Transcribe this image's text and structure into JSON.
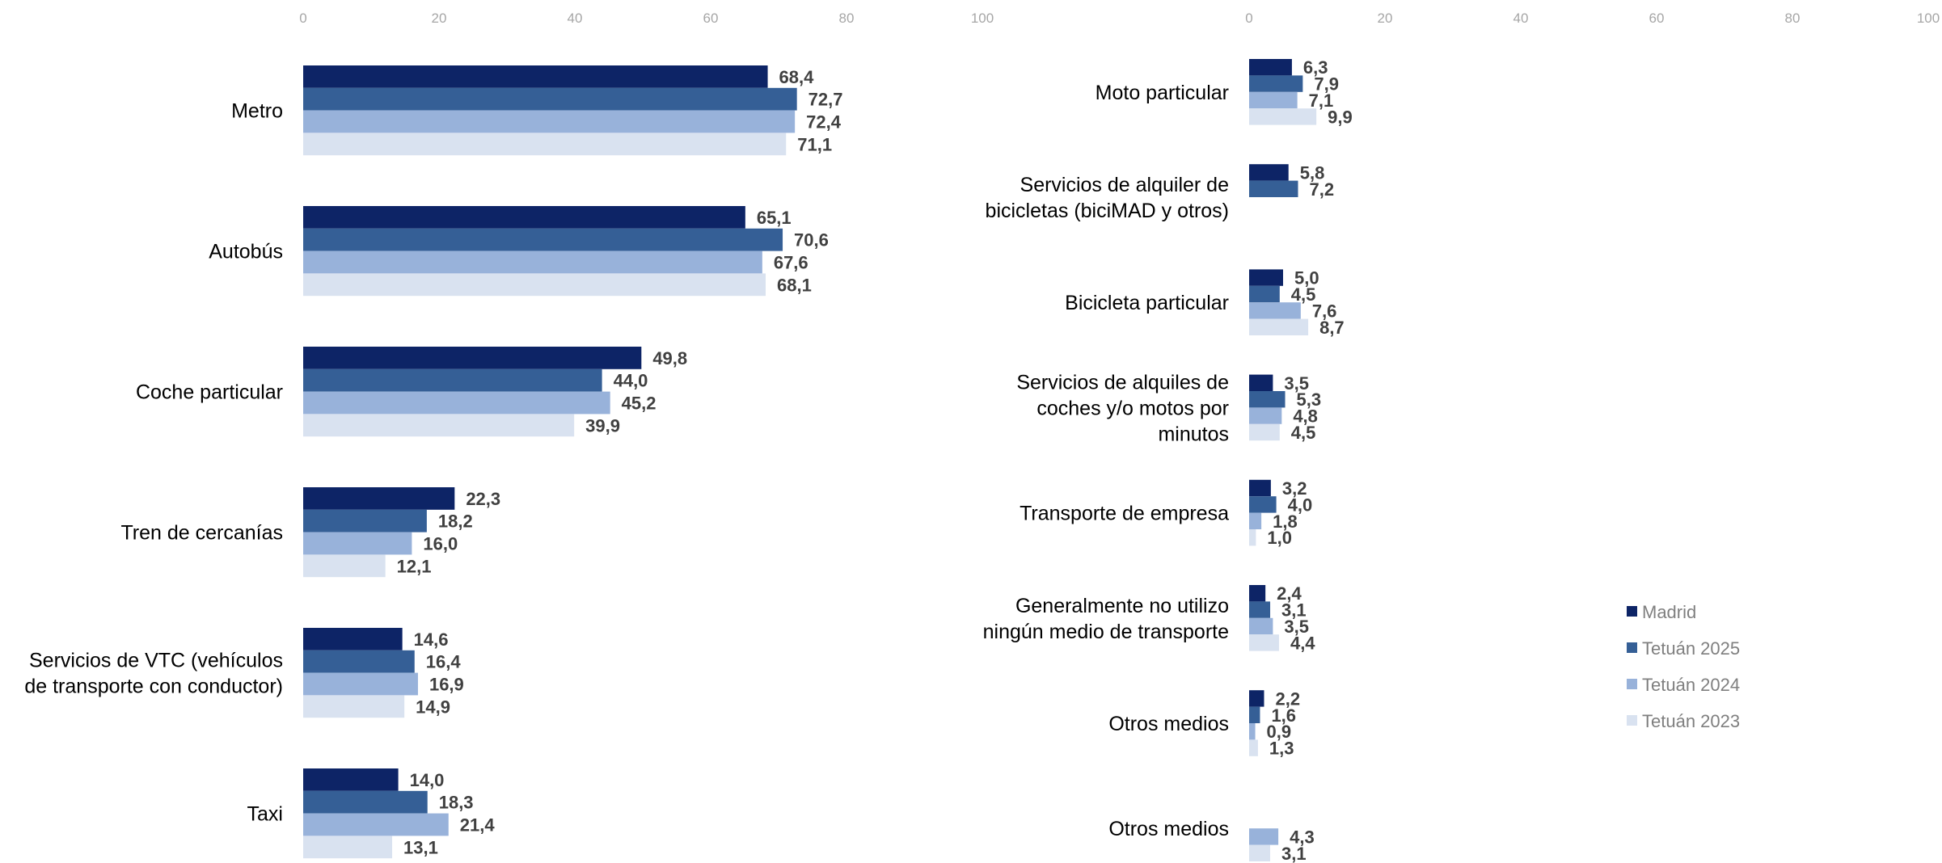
{
  "chart_data": [
    {
      "type": "bar",
      "orientation": "horizontal",
      "xlim": [
        0,
        100
      ],
      "ticks": [
        "0",
        "20",
        "40",
        "60",
        "80",
        "100"
      ],
      "categories": [
        "Metro",
        "Autobús",
        "Coche particular",
        "Tren de cercanías",
        "Servicios de VTC (vehículos de transporte con conductor)",
        "Taxi"
      ],
      "category_lines": [
        [
          "Metro"
        ],
        [
          "Autobús"
        ],
        [
          "Coche particular"
        ],
        [
          "Tren de cercanías"
        ],
        [
          "Servicios de VTC (vehículos",
          "de transporte con conductor)"
        ],
        [
          "Taxi"
        ]
      ],
      "series": [
        {
          "name": "Madrid",
          "values": [
            68.4,
            65.1,
            49.8,
            22.3,
            14.6,
            14.0
          ],
          "labels": [
            "68,4",
            "65,1",
            "49,8",
            "22,3",
            "14,6",
            "14,0"
          ]
        },
        {
          "name": "Tetuán 2025",
          "values": [
            72.7,
            70.6,
            44.0,
            18.2,
            16.4,
            18.3
          ],
          "labels": [
            "72,7",
            "70,6",
            "44,0",
            "18,2",
            "16,4",
            "18,3"
          ]
        },
        {
          "name": "Tetuán 2024",
          "values": [
            72.4,
            67.6,
            45.2,
            16.0,
            16.9,
            21.4
          ],
          "labels": [
            "72,4",
            "67,6",
            "45,2",
            "16,0",
            "16,9",
            "21,4"
          ]
        },
        {
          "name": "Tetuán 2023",
          "values": [
            71.1,
            68.1,
            39.9,
            12.1,
            14.9,
            13.1
          ],
          "labels": [
            "71,1",
            "68,1",
            "39,9",
            "12,1",
            "14,9",
            "13,1"
          ]
        }
      ]
    },
    {
      "type": "bar",
      "orientation": "horizontal",
      "xlim": [
        0,
        100
      ],
      "ticks": [
        "0",
        "20",
        "40",
        "60",
        "80",
        "100"
      ],
      "categories": [
        "Moto particular",
        "Servicios de alquiler de bicicletas (biciMAD y otros)",
        "Bicicleta particular",
        "Servicios de alquiles de coches y/o motos por minutos",
        "Transporte de empresa",
        "Generalmente no utilizo ningún medio de transporte",
        "Otros medios",
        "Otros medios"
      ],
      "category_lines": [
        [
          "Moto particular"
        ],
        [
          "Servicios de alquiler de",
          "bicicletas (biciMAD y otros)"
        ],
        [
          "Bicicleta particular"
        ],
        [
          "Servicios de alquiles de",
          "coches y/o motos por",
          "minutos"
        ],
        [
          "Transporte de empresa"
        ],
        [
          "Generalmente no utilizo",
          "ningún medio de transporte"
        ],
        [
          "Otros medios"
        ],
        [
          "Otros medios"
        ]
      ],
      "series": [
        {
          "name": "Madrid",
          "values": [
            6.3,
            5.8,
            5.0,
            3.5,
            3.2,
            2.4,
            2.2,
            null
          ],
          "labels": [
            "6,3",
            "5,8",
            "5,0",
            "3,5",
            "3,2",
            "2,4",
            "2,2",
            null
          ]
        },
        {
          "name": "Tetuán 2025",
          "values": [
            7.9,
            7.2,
            4.5,
            5.3,
            4.0,
            3.1,
            1.6,
            null
          ],
          "labels": [
            "7,9",
            "7,2",
            "4,5",
            "5,3",
            "4,0",
            "3,1",
            "1,6",
            null
          ]
        },
        {
          "name": "Tetuán 2024",
          "values": [
            7.1,
            null,
            7.6,
            4.8,
            1.8,
            3.5,
            0.9,
            4.3
          ],
          "labels": [
            "7,1",
            null,
            "7,6",
            "4,8",
            "1,8",
            "3,5",
            "0,9",
            "4,3"
          ]
        },
        {
          "name": "Tetuán 2023",
          "values": [
            9.9,
            null,
            8.7,
            4.5,
            1.0,
            4.4,
            1.3,
            3.1
          ],
          "labels": [
            "9,9",
            null,
            "8,7",
            "4,5",
            "1,0",
            "4,4",
            "1,3",
            "3,1"
          ]
        }
      ]
    }
  ],
  "legend": {
    "position": "right",
    "items": [
      {
        "label": "Madrid",
        "color": "#0d2466"
      },
      {
        "label": "Tetuán 2025",
        "color": "#355f96"
      },
      {
        "label": "Tetuán 2024",
        "color": "#98b2da"
      },
      {
        "label": "Tetuán 2023",
        "color": "#d9e2f0"
      }
    ]
  },
  "colors": [
    "#0d2466",
    "#355f96",
    "#98b2da",
    "#d9e2f0"
  ]
}
